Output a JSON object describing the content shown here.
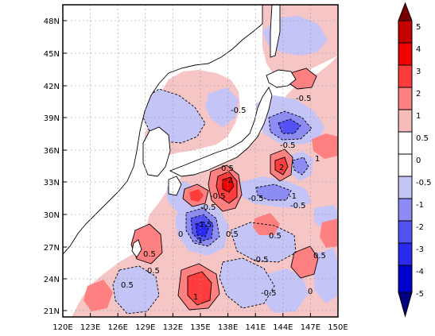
{
  "map": {
    "lat_labels": [
      "48N",
      "45N",
      "42N",
      "39N",
      "36N",
      "33N",
      "30N",
      "27N",
      "24N",
      "21N"
    ],
    "lon_labels": [
      "120E",
      "123E",
      "126E",
      "129E",
      "132E",
      "135E",
      "138E",
      "141E",
      "144E",
      "147E",
      "150E"
    ],
    "grid": "dotted"
  },
  "colorbar": {
    "labels": [
      "5",
      "4",
      "3",
      "2",
      "1",
      "0.5",
      "0",
      "-0.5",
      "-1",
      "-2",
      "-3",
      "-4",
      "-5"
    ],
    "colors": [
      "#7a0000",
      "#c40000",
      "#f20000",
      "#ff3c3c",
      "#ff8080",
      "#f6bcbc",
      "#ffffff",
      "#c4c4f6",
      "#8c8cf2",
      "#5252f2",
      "#2a2aee",
      "#0000cc",
      "#000080"
    ]
  },
  "contour_labels": [
    "0.5",
    "-0.5",
    "-1",
    "-1.5",
    "0",
    "1",
    "2",
    "-2",
    "1.5"
  ]
}
